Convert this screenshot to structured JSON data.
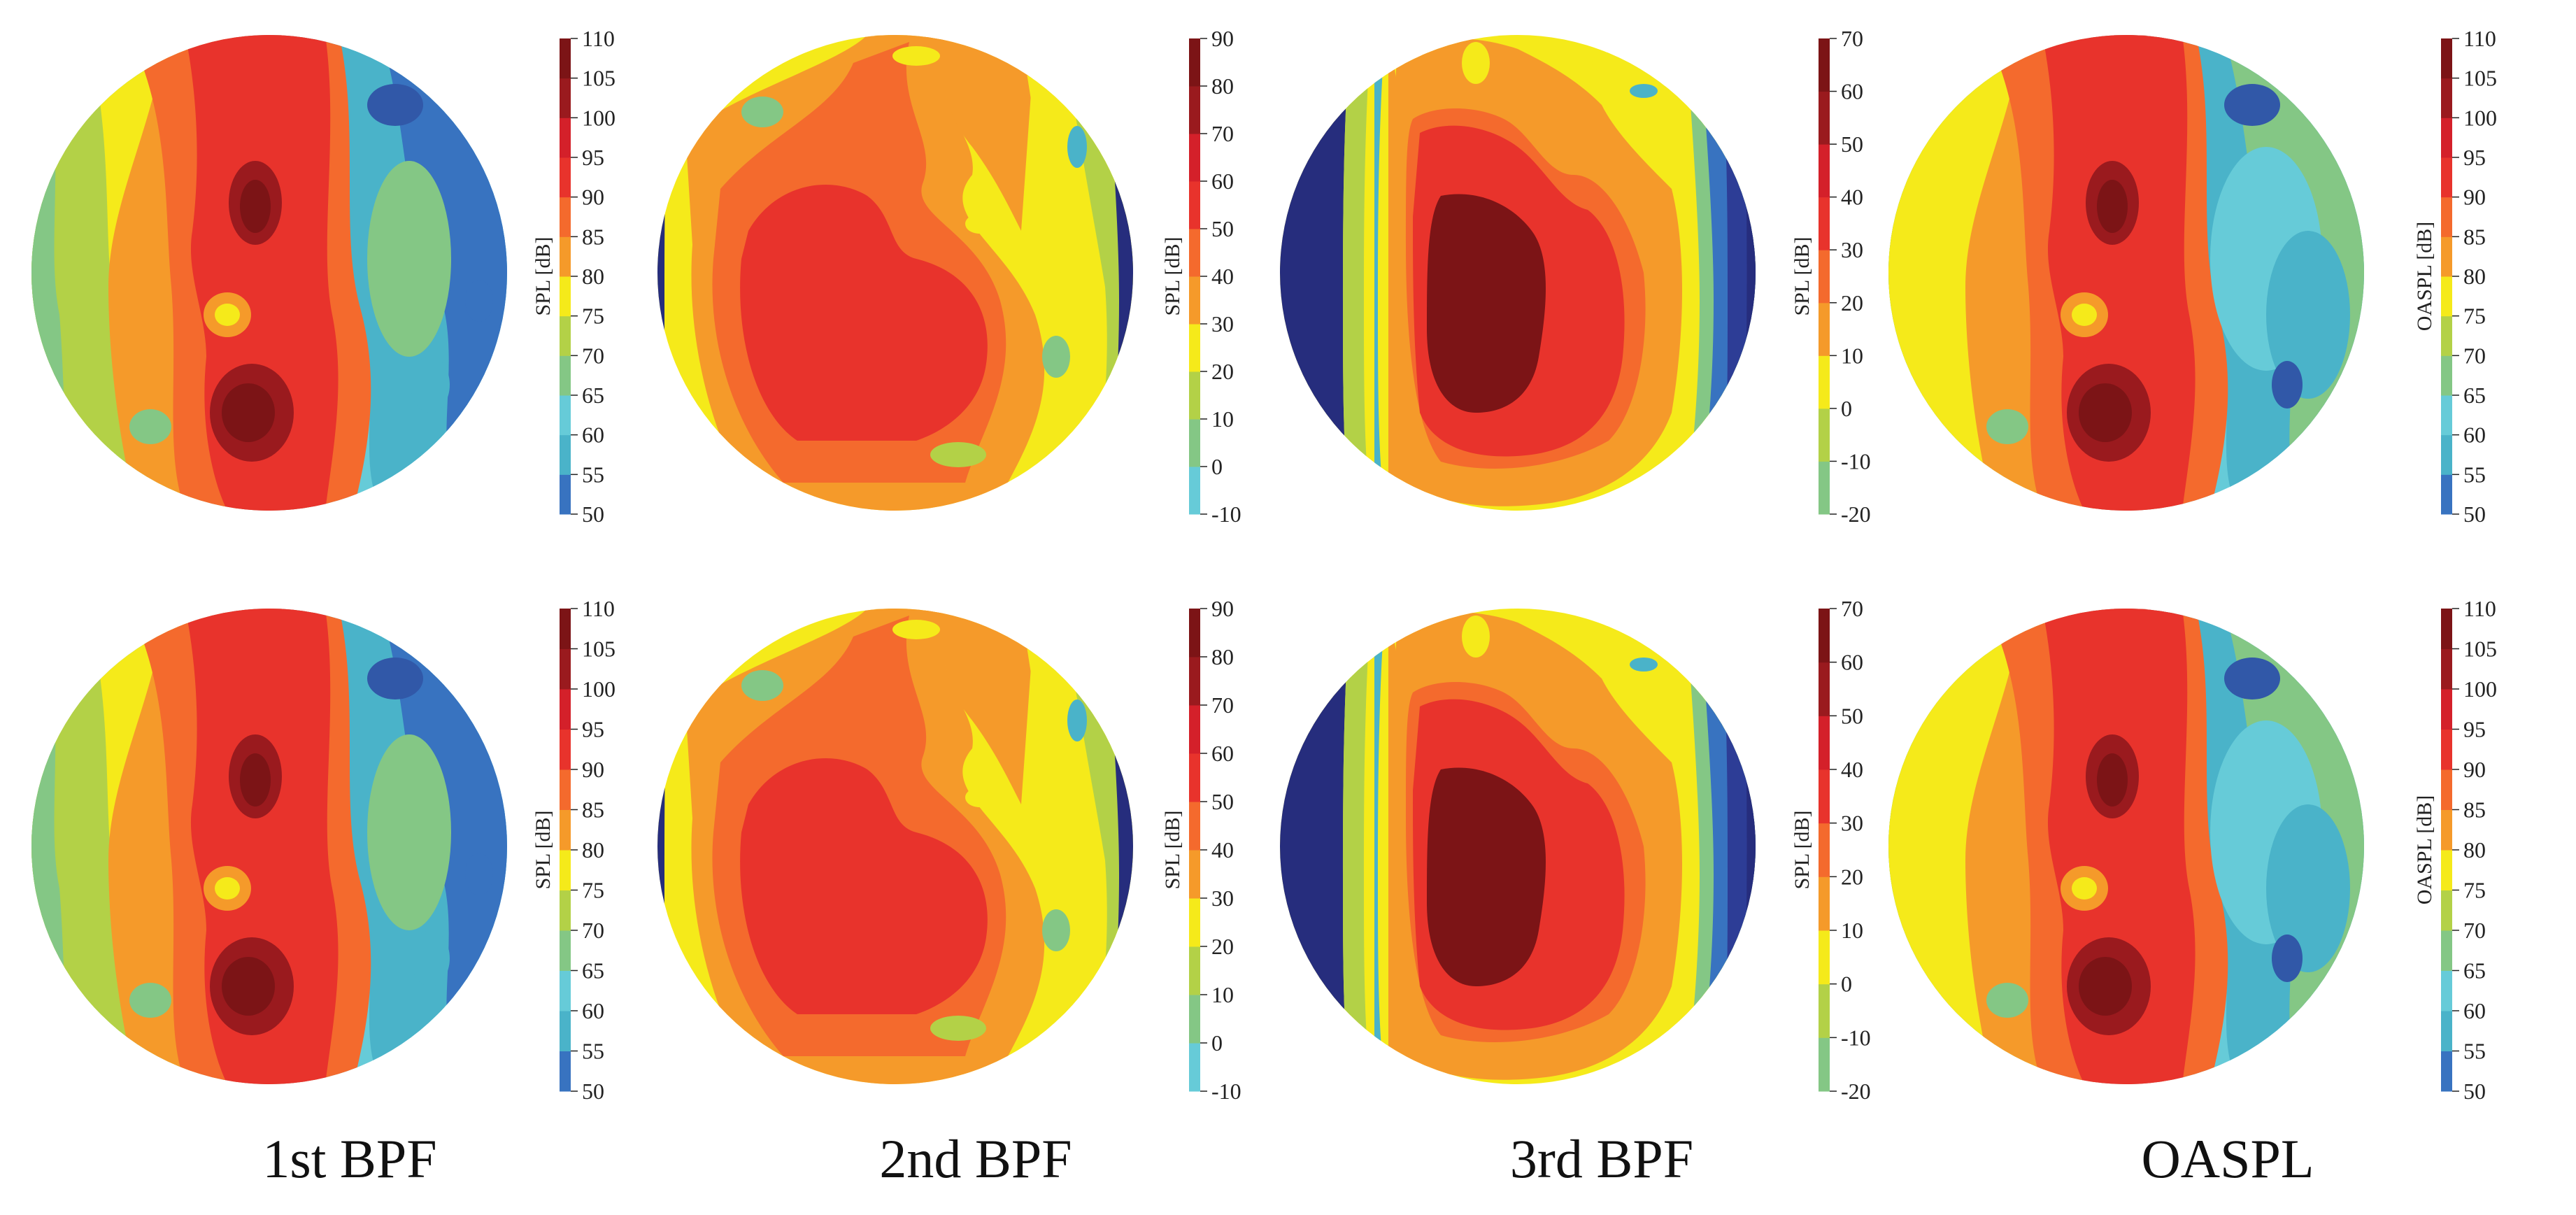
{
  "chart_data": [
    {
      "type": "heatmap",
      "row": 0,
      "col": 0,
      "title": "1st BPF",
      "colorbar_label": "SPL [dB]",
      "range": [
        50,
        110
      ],
      "ticks": [
        50,
        55,
        60,
        65,
        70,
        75,
        80,
        85,
        90,
        95,
        100,
        105,
        110
      ],
      "pattern": "bpf1"
    },
    {
      "type": "heatmap",
      "row": 0,
      "col": 1,
      "title": "2nd BPF",
      "colorbar_label": "SPL [dB]",
      "range": [
        -10,
        90
      ],
      "ticks": [
        -10,
        0,
        10,
        20,
        30,
        40,
        50,
        60,
        70,
        80,
        90
      ],
      "pattern": "bpf2"
    },
    {
      "type": "heatmap",
      "row": 0,
      "col": 2,
      "title": "3rd BPF",
      "colorbar_label": "SPL [dB]",
      "range": [
        -20,
        70
      ],
      "ticks": [
        -20,
        -10,
        0,
        10,
        20,
        30,
        40,
        50,
        60,
        70
      ],
      "pattern": "bpf3"
    },
    {
      "type": "heatmap",
      "row": 0,
      "col": 3,
      "title": "OASPL",
      "colorbar_label": "OASPL [dB]",
      "range": [
        50,
        110
      ],
      "ticks": [
        50,
        55,
        60,
        65,
        70,
        75,
        80,
        85,
        90,
        95,
        100,
        105,
        110
      ],
      "pattern": "oaspl"
    },
    {
      "type": "heatmap",
      "row": 1,
      "col": 0,
      "title": "1st BPF",
      "colorbar_label": "SPL [dB]",
      "range": [
        50,
        110
      ],
      "ticks": [
        50,
        55,
        60,
        65,
        70,
        75,
        80,
        85,
        90,
        95,
        100,
        105,
        110
      ],
      "pattern": "bpf1"
    },
    {
      "type": "heatmap",
      "row": 1,
      "col": 1,
      "title": "2nd BPF",
      "colorbar_label": "SPL [dB]",
      "range": [
        -10,
        90
      ],
      "ticks": [
        -10,
        0,
        10,
        20,
        30,
        40,
        50,
        60,
        70,
        80,
        90
      ],
      "pattern": "bpf2"
    },
    {
      "type": "heatmap",
      "row": 1,
      "col": 2,
      "title": "3rd BPF",
      "colorbar_label": "SPL [dB]",
      "range": [
        -20,
        70
      ],
      "ticks": [
        -20,
        -10,
        0,
        10,
        20,
        30,
        40,
        50,
        60,
        70
      ],
      "pattern": "bpf3"
    },
    {
      "type": "heatmap",
      "row": 1,
      "col": 3,
      "title": "OASPL",
      "colorbar_label": "OASPL [dB]",
      "range": [
        50,
        110
      ],
      "ticks": [
        50,
        55,
        60,
        65,
        70,
        75,
        80,
        85,
        90,
        95,
        100,
        105,
        110
      ],
      "pattern": "oaspl"
    }
  ],
  "column_titles": [
    "1st BPF",
    "2nd BPF",
    "3rd BPF",
    "OASPL"
  ],
  "colormap": [
    "#262d7d",
    "#2d3d96",
    "#3158a8",
    "#3873c0",
    "#4ab3c9",
    "#66cbd8",
    "#84c785",
    "#b3d147",
    "#f5ea1a",
    "#f59a2a",
    "#f46a2d",
    "#e8332c",
    "#d4202a",
    "#9a1a1e",
    "#7c1416"
  ]
}
